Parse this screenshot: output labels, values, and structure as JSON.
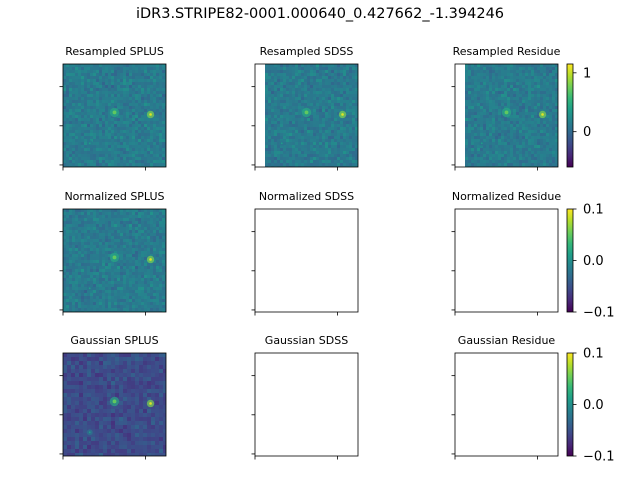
{
  "figure": {
    "title": "iDR3.STRIPE82-0001.000640_0.427662_-1.394246"
  },
  "colors": {
    "viridis": [
      "#440154",
      "#482878",
      "#3e4a89",
      "#31688e",
      "#26828e",
      "#1f9e89",
      "#35b779",
      "#6ece58",
      "#b5de2b",
      "#fde725"
    ],
    "axes": "#000000",
    "background": "#ffffff"
  },
  "chart_data": [
    {
      "type": "heatmap",
      "title": "Resampled SPLUS",
      "image": "noise_field",
      "sources": "two_point_sources",
      "left_blank_strip": false
    },
    {
      "type": "heatmap",
      "title": "Resampled SDSS",
      "image": "noise_field",
      "sources": "two_point_sources",
      "left_blank_strip": true
    },
    {
      "type": "heatmap",
      "title": "Resampled Residue",
      "image": "noise_field",
      "sources": "two_point_sources",
      "left_blank_strip": true,
      "colorbar": {
        "ticks": [
          0,
          1
        ],
        "tick_labels": [
          "0",
          "1"
        ],
        "range": [
          -0.6,
          1.15
        ]
      }
    },
    {
      "type": "heatmap",
      "title": "Normalized SPLUS",
      "image": "noise_field",
      "sources": "two_point_sources",
      "left_blank_strip": false
    },
    {
      "type": "heatmap",
      "title": "Normalized SDSS",
      "image": "blank"
    },
    {
      "type": "heatmap",
      "title": "Normalized Residue",
      "image": "blank",
      "colorbar": {
        "ticks": [
          -0.1,
          0.0,
          0.1
        ],
        "tick_labels": [
          "−0.1",
          "0.0",
          "0.1"
        ],
        "range": [
          -0.1,
          0.1
        ]
      }
    },
    {
      "type": "heatmap",
      "title": "Gaussian SPLUS",
      "image": "smoothed_field",
      "sources": "two_point_sources",
      "left_blank_strip": false
    },
    {
      "type": "heatmap",
      "title": "Gaussian SDSS",
      "image": "blank"
    },
    {
      "type": "heatmap",
      "title": "Gaussian Residue",
      "image": "blank",
      "colorbar": {
        "ticks": [
          -0.1,
          0.0,
          0.1
        ],
        "tick_labels": [
          "−0.1",
          "0.0",
          "0.1"
        ],
        "range": [
          -0.1,
          0.1
        ]
      }
    }
  ]
}
